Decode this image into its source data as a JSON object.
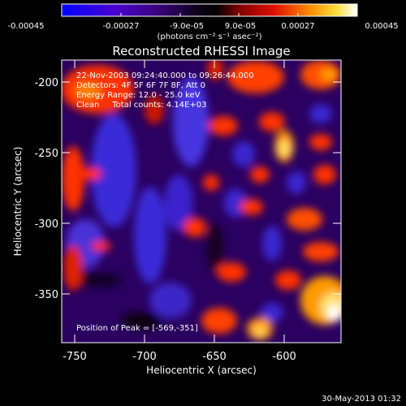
{
  "colorbar": {
    "tick_labels": [
      "-0.00045",
      "-0.00027",
      "-9.0e-05",
      "9.0e-05",
      "0.00027",
      "0.00045"
    ],
    "unit_label": "(photons cm⁻² s⁻¹ asec⁻²)"
  },
  "plot": {
    "title": "Reconstructed RHESSI Image",
    "info_lines": [
      "22-Nov-2003 09:24:40.000 to 09:26:44.000",
      "Detectors: 4F 5F 6F 7F 8F, Att 0",
      "Energy Range: 12.0 - 25.0 keV",
      "Clean     Total counts: 4.14E+03"
    ],
    "peak_label": "Position of Peak = [-569,-351]",
    "xlabel": "Heliocentric X (arcsec)",
    "ylabel": "Heliocentric Y (arcsec)",
    "x_ticks": [
      "-750",
      "-700",
      "-650",
      "-600"
    ],
    "y_ticks": [
      "-200",
      "-250",
      "-300",
      "-350"
    ]
  },
  "footer": {
    "date": "30-May-2013 01:32"
  },
  "chart_data": {
    "type": "heatmap",
    "title": "Reconstructed RHESSI Image",
    "xlabel": "Heliocentric X (arcsec)",
    "ylabel": "Heliocentric Y (arcsec)",
    "xlim": [
      -766,
      -566
    ],
    "ylim": [
      -386,
      -186
    ],
    "zlim": [
      -0.00045,
      0.00045
    ],
    "colorbar_ticks": [
      -0.00045,
      -0.00027,
      -9e-05,
      9e-05,
      0.00027,
      0.00045
    ],
    "peak": [
      -569,
      -351
    ],
    "colormap": [
      "#0000ff",
      "#5a00b8",
      "#20003a",
      "#000000",
      "#9a0000",
      "#ff2000",
      "#ff9a00",
      "#ffff80",
      "#ffffff"
    ]
  }
}
